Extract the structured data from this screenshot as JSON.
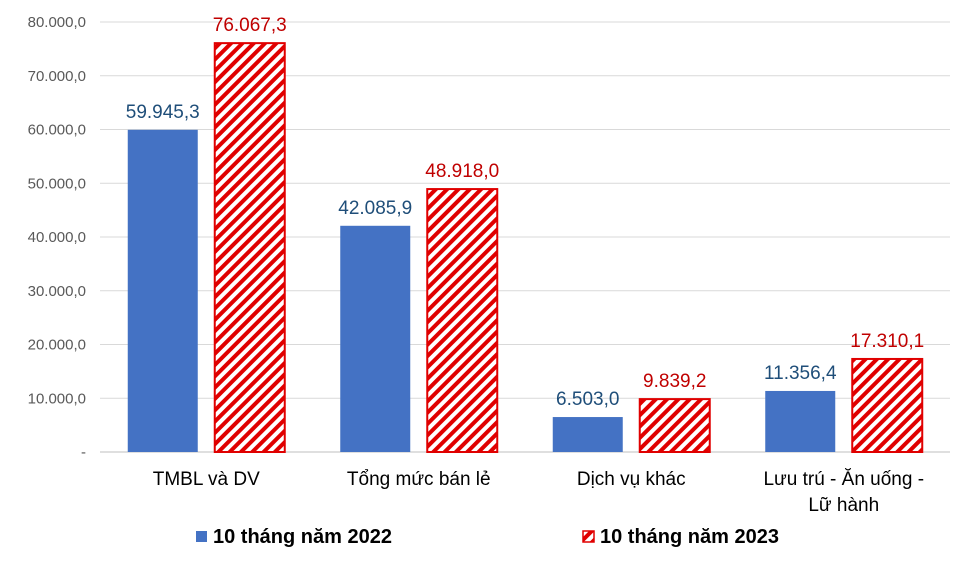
{
  "chart_data": {
    "type": "bar",
    "title": "",
    "xlabel": "",
    "ylabel": "",
    "ylim": [
      0,
      80000
    ],
    "y_ticks": [
      "-",
      "10.000,0",
      "20.000,0",
      "30.000,0",
      "40.000,0",
      "50.000,0",
      "60.000,0",
      "70.000,0",
      "80.000,0"
    ],
    "y_tick_values": [
      0,
      10000,
      20000,
      30000,
      40000,
      50000,
      60000,
      70000,
      80000
    ],
    "grid": true,
    "legend_position": "bottom",
    "categories": [
      [
        "TMBL và DV"
      ],
      [
        "Tổng mức bán lẻ"
      ],
      [
        "Dịch vụ khác"
      ],
      [
        "Lưu trú - Ăn uống -",
        "Lữ hành"
      ]
    ],
    "series": [
      {
        "name": "10 tháng năm 2022",
        "values": [
          59945.3,
          42085.9,
          6503.0,
          11356.4
        ],
        "labels": [
          "59.945,3",
          "42.085,9",
          "6.503,0",
          "11.356,4"
        ],
        "color": "#4472C4",
        "label_color": "#1F4E79",
        "pattern": "solid"
      },
      {
        "name": "10 tháng năm 2023",
        "values": [
          76067.3,
          48918.0,
          9839.2,
          17310.1
        ],
        "labels": [
          "76.067,3",
          "48.918,0",
          "9.839,2",
          "17.310,1"
        ],
        "color": "#E00000",
        "label_color": "#C00000",
        "pattern": "diagonal-hatch"
      }
    ]
  }
}
